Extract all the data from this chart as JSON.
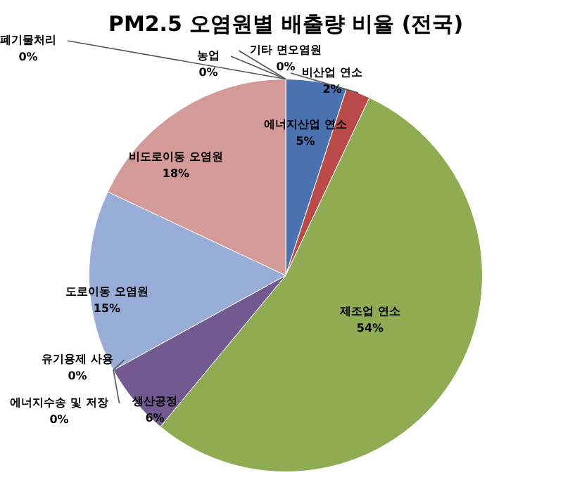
{
  "chart_data": {
    "type": "pie",
    "title": "PM2.5 오염원별 배출량 비율 (전국)",
    "categories": [
      "에너지산업 연소",
      "비산업 연소",
      "제조업 연소",
      "생산공정",
      "에너지수송 및 저장",
      "유기용제 사용",
      "도로이동 오염원",
      "비도로이동 오염원",
      "폐기물처리",
      "농업",
      "기타 면오염원"
    ],
    "values": [
      5,
      2,
      54,
      6,
      0,
      0,
      15,
      18,
      0,
      0,
      0
    ],
    "value_labels": [
      "5%",
      "2%",
      "54%",
      "6%",
      "0%",
      "0%",
      "15%",
      "18%",
      "0%",
      "0%",
      "0%"
    ],
    "colors": [
      "#4a72b0",
      "#b94a48",
      "#8fac52",
      "#725a91",
      "#4bacc6",
      "#f79646",
      "#97acd6",
      "#d49a98",
      "#2c4d75",
      "#5f7530",
      "#c6d96e"
    ],
    "legend": false
  }
}
